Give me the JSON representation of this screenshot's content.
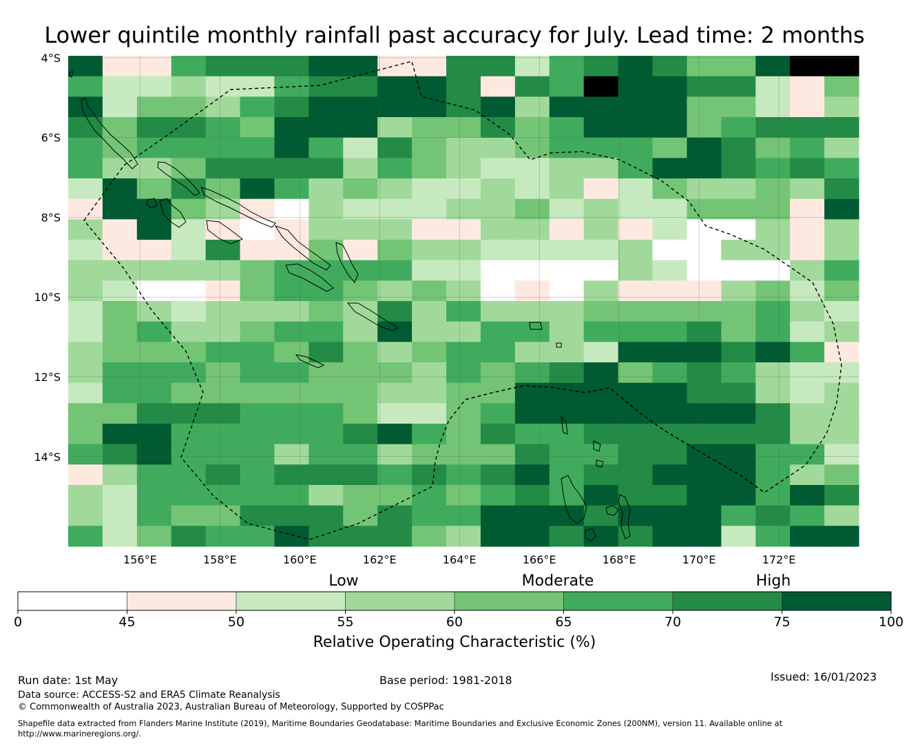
{
  "title": "Lower quintile monthly rainfall past accuracy for July. Lead time: 2 months",
  "chart_data": {
    "type": "heatmap",
    "title": "Lower quintile monthly rainfall past accuracy for July. Lead time: 2 months",
    "x_ticks": [
      "156°E",
      "158°E",
      "160°E",
      "162°E",
      "164°E",
      "166°E",
      "168°E",
      "170°E",
      "172°E"
    ],
    "y_ticks": [
      "4°S",
      "6°S",
      "8°S",
      "10°S",
      "12°S",
      "14°S"
    ],
    "xlim": [
      154.2,
      174
    ],
    "ylim": [
      -16.25,
      -3.95
    ],
    "cell_size_deg": [
      0.83,
      0.55
    ],
    "color_scale": {
      "bounds": [
        0,
        45,
        50,
        55,
        60,
        65,
        70,
        75,
        100
      ],
      "tick_labels": [
        "0",
        "45",
        "50",
        "55",
        "60",
        "65",
        "70",
        "75",
        "100"
      ],
      "colors": [
        "#ffffff",
        "#fee9e1",
        "#c7e9c0",
        "#a1d99b",
        "#74c476",
        "#41ab5d",
        "#238b45",
        "#005a32"
      ],
      "category_labels": [
        "Low",
        "Moderate",
        "High"
      ],
      "label": "Relative Operating Characteristic (%)"
    },
    "grid_classes": [
      "71156667711662567644788",
      "52232256677616587766214",
      "72443567777673777744213",
      "64665477734464577745666",
      "54555575264334555476453",
      "53346666354322335776565",
      "27464753432232312433436",
      "17743103222334232244417",
      "31721013331133131200313",
      "21126114143322223003313",
      "33333455552200003200035",
      "32001455434301031113424",
      "24323334363533344444532",
      "24533455373355355564523",
      "34445546434553327776751",
      "35554554443545674565322",
      "25544444433447777766323",
      "44666555422457777777633",
      "47755555675465566666633",
      "56755535534446556677552",
      "13556566656567566777534",
      "32555553445456576677576",
      "32544666465577767775653",
      "52465576664377676772577"
    ]
  },
  "colorbar": {
    "ticks": [
      "0",
      "45",
      "50",
      "55",
      "60",
      "65",
      "70",
      "75",
      "100"
    ],
    "low": "Low",
    "moderate": "Moderate",
    "high": "High",
    "label": "Relative Operating Characteristic (%)"
  },
  "footer": {
    "run_date": "Run date: 1st May",
    "base_period": "Base period: 1981-2018",
    "issued": "Issued: 16/01/2023",
    "data_source": "Data source: ACCESS-S2 and ERA5 Climate Reanalysis",
    "copyright": "© Commonwealth of Australia 2023, Australian Bureau of Meteorology, Supported by COSPPac",
    "shapefile": "Shapefile data extracted from Flanders Marine Institute (2019), Maritime Boundaries Geodatabase: Maritime Boundaries and Exclusive Economic Zones (200NM), version 11. Available online at http://www.marineregions.org/."
  }
}
